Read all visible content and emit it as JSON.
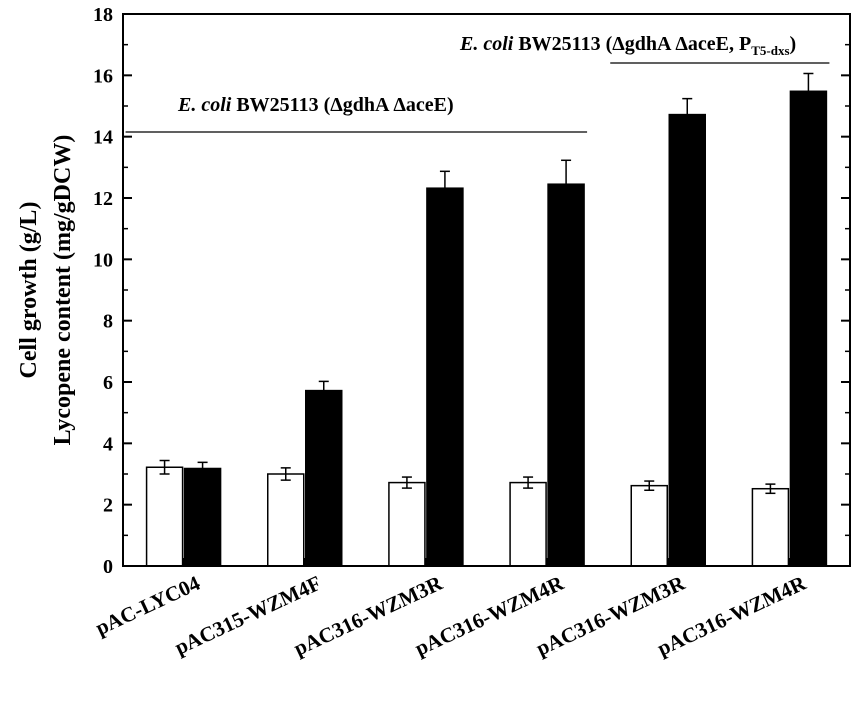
{
  "chart_data": {
    "type": "bar",
    "ylabel_line1": "Cell growth (g/L)",
    "ylabel_line2": "Lycopene content (mg/gDCW)",
    "ylim": [
      0,
      18
    ],
    "yticks": [
      0,
      2,
      4,
      6,
      8,
      10,
      12,
      14,
      16,
      18
    ],
    "grid": false,
    "categories": [
      "pAC-LYC04",
      "pAC315-WZM4F",
      "pAC316-WZM3R",
      "pAC316-WZM4R",
      "pAC316-WZM3R",
      "pAC316-WZM4R"
    ],
    "series": [
      {
        "fill": "#ffffff",
        "values": [
          3.22,
          3.0,
          2.72,
          2.72,
          2.62,
          2.52
        ],
        "errors": [
          0.22,
          0.2,
          0.18,
          0.18,
          0.15,
          0.15
        ]
      },
      {
        "fill": "#000000",
        "values": [
          3.18,
          5.72,
          12.32,
          12.45,
          14.72,
          15.48
        ],
        "errors": [
          0.2,
          0.3,
          0.55,
          0.78,
          0.52,
          0.58
        ]
      }
    ],
    "annotations": [
      {
        "italic": "E. coli",
        "text": " BW25113 (ΔgdhA ΔaceE)",
        "groups": [
          0,
          3
        ]
      },
      {
        "italic": "E. coli",
        "text": " BW25113 (ΔgdhA ΔaceE, P",
        "subscript": "T5-dxs",
        "tail": ")",
        "groups": [
          4,
          5
        ]
      }
    ]
  }
}
